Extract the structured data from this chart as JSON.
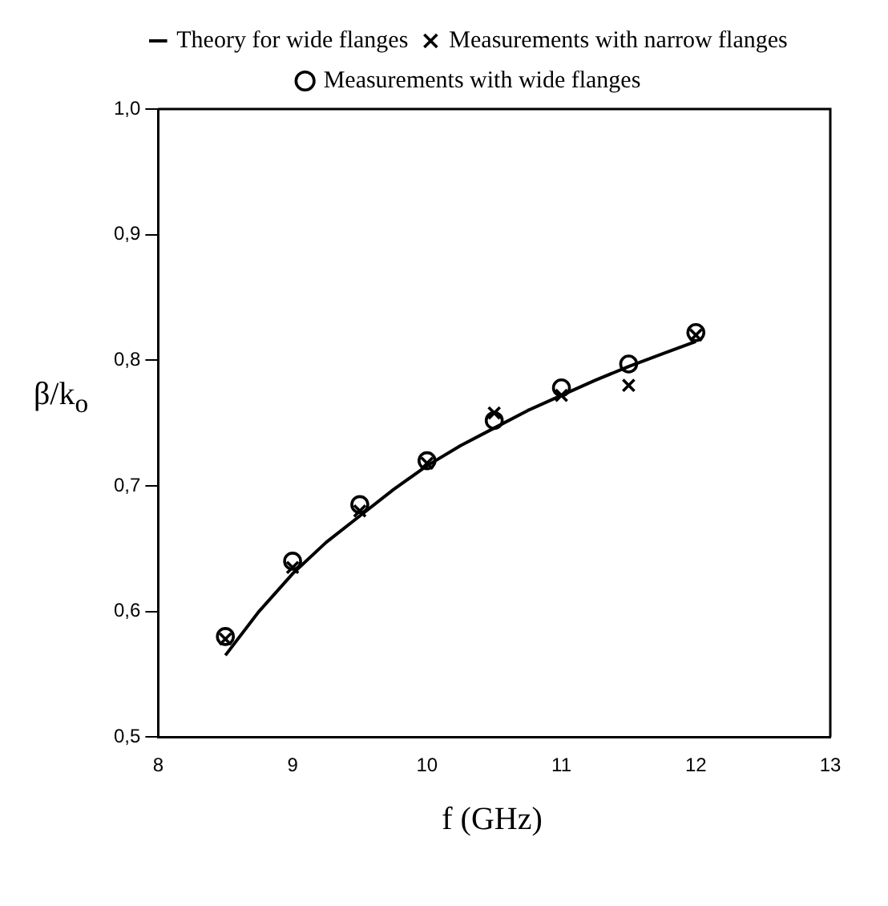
{
  "chart_data": {
    "type": "line",
    "xlabel": "f (GHz)",
    "ylabel": "β/k$_{o}$",
    "xlim": [
      8,
      13
    ],
    "xticks": [
      8,
      9,
      10,
      11,
      12,
      13
    ],
    "ylim": [
      0.5,
      1.0
    ],
    "yticks": [
      {
        "value": 0.5,
        "label": "0,5"
      },
      {
        "value": 0.6,
        "label": "0,6"
      },
      {
        "value": 0.7,
        "label": "0,7"
      },
      {
        "value": 0.8,
        "label": "0,8"
      },
      {
        "value": 0.9,
        "label": "0,9"
      },
      {
        "value": 1.0,
        "label": "1,0"
      }
    ],
    "grid": false,
    "legend": "top",
    "series": [
      {
        "name": "Theory for wide flanges",
        "type": "line",
        "color": "#000000",
        "marker": "none",
        "line_style": "solid",
        "x": [
          8.5,
          8.75,
          9,
          9.25,
          9.5,
          9.75,
          10,
          10.25,
          10.5,
          10.75,
          11,
          11.25,
          11.5,
          11.75,
          12
        ],
        "values": [
          0.565,
          0.6,
          0.63,
          0.655,
          0.676,
          0.697,
          0.716,
          0.732,
          0.746,
          0.76,
          0.772,
          0.784,
          0.795,
          0.805,
          0.815
        ]
      },
      {
        "name": "Measurements with narrow flanges",
        "type": "scatter",
        "color": "#000000",
        "marker": "cross",
        "x": [
          8.5,
          9,
          9.5,
          10,
          10.5,
          11,
          11.5,
          12
        ],
        "values": [
          0.578,
          0.635,
          0.68,
          0.718,
          0.758,
          0.772,
          0.78,
          0.82
        ]
      },
      {
        "name": "Measurements with wide flanges",
        "type": "scatter",
        "color": "#000000",
        "marker": "circle",
        "x": [
          8.5,
          9,
          9.5,
          10,
          10.5,
          11,
          11.5,
          12
        ],
        "values": [
          0.58,
          0.64,
          0.685,
          0.72,
          0.752,
          0.778,
          0.797,
          0.822
        ]
      }
    ]
  }
}
